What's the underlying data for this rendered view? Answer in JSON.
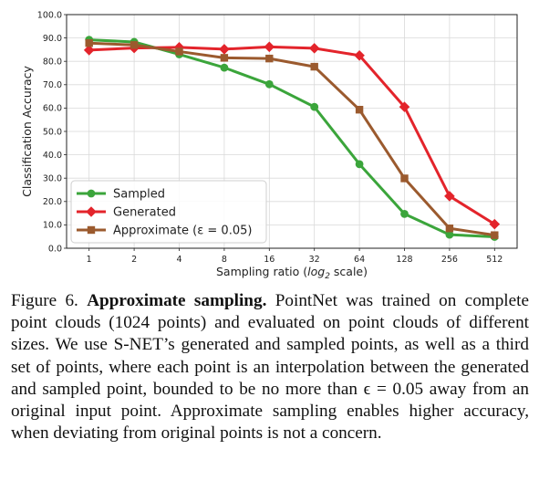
{
  "chart_data": {
    "type": "line",
    "categories": [
      "1",
      "2",
      "4",
      "8",
      "16",
      "32",
      "64",
      "128",
      "256",
      "512"
    ],
    "xlabel_text": "Sampling ratio (",
    "xlabel_math": "log",
    "xlabel_sub": "2",
    "xlabel_tail": " scale)",
    "ylabel": "Classification Accuracy",
    "ylim": [
      0,
      100
    ],
    "yticks": [
      "0.0",
      "10.0",
      "20.0",
      "30.0",
      "40.0",
      "50.0",
      "60.0",
      "70.0",
      "80.0",
      "90.0",
      "100.0"
    ],
    "grid": true,
    "legend_position": "lower-left",
    "series": [
      {
        "name": "Sampled",
        "color": "#3ba53b",
        "marker": "circle",
        "values": [
          89.2,
          88.3,
          83.0,
          77.3,
          70.2,
          60.5,
          36.0,
          14.7,
          5.8,
          4.9
        ]
      },
      {
        "name": "Generated",
        "color": "#e3242b",
        "marker": "diamond",
        "values": [
          84.8,
          85.7,
          86.0,
          85.2,
          86.2,
          85.6,
          82.5,
          60.5,
          22.3,
          10.3
        ]
      },
      {
        "name": "Approximate (ε = 0.05)",
        "color": "#9b5a2e",
        "marker": "square",
        "values": [
          87.8,
          87.0,
          84.2,
          81.5,
          81.2,
          77.7,
          59.3,
          29.9,
          8.5,
          5.6
        ]
      }
    ]
  },
  "caption": {
    "label": "Figure 6.",
    "title": "Approximate sampling.",
    "text": "PointNet was trained on complete point clouds (1024 points) and evaluated on point clouds of different sizes. We use S-NET’s generated and sampled points, as well as a third set of points, where each point is an interpolation between the generated and sampled point, bounded to be no more than ϵ = 0.05 away from an original input point. Approximate sampling enables higher accuracy, when deviating from original points is not a concern."
  }
}
